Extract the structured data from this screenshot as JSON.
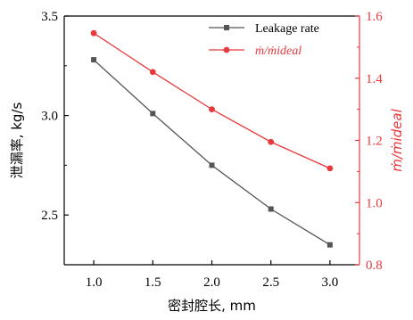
{
  "chart_data": {
    "type": "line",
    "title": "",
    "xlabel": "密封腔长, mm",
    "ylabel_left": "泄漏率, kg/s",
    "ylabel_right": "ṁ/ṁideal",
    "x": [
      1.0,
      1.5,
      2.0,
      2.5,
      3.0
    ],
    "xlim": [
      0.75,
      3.25
    ],
    "ylim_left": [
      2.25,
      3.5
    ],
    "ylim_right": [
      0.8,
      1.6
    ],
    "x_ticks": [
      "1.0",
      "1.5",
      "2.0",
      "2.5",
      "3.0"
    ],
    "y_left_ticks": [
      "2.5",
      "3.0",
      "3.5"
    ],
    "y_right_ticks": [
      "0.8",
      "1.0",
      "1.2",
      "1.4",
      "1.6"
    ],
    "grid": false,
    "legend_position": "top-right",
    "series": [
      {
        "name": "Leakage rate",
        "axis": "left",
        "color": "#555555",
        "marker": "square",
        "values": [
          3.28,
          3.01,
          2.75,
          2.53,
          2.35
        ]
      },
      {
        "name": "ṁ/ṁideal",
        "axis": "right",
        "color": "#e8393c",
        "marker": "circle",
        "values": [
          1.545,
          1.42,
          1.3,
          1.195,
          1.11
        ]
      }
    ]
  }
}
